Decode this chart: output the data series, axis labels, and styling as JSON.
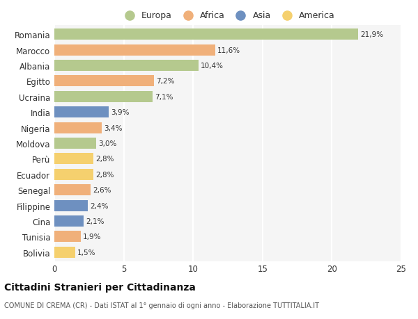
{
  "countries": [
    "Romania",
    "Marocco",
    "Albania",
    "Egitto",
    "Ucraina",
    "India",
    "Nigeria",
    "Moldova",
    "Perù",
    "Ecuador",
    "Senegal",
    "Filippine",
    "Cina",
    "Tunisia",
    "Bolivia"
  ],
  "values": [
    21.9,
    11.6,
    10.4,
    7.2,
    7.1,
    3.9,
    3.4,
    3.0,
    2.8,
    2.8,
    2.6,
    2.4,
    2.1,
    1.9,
    1.5
  ],
  "labels": [
    "21,9%",
    "11,6%",
    "10,4%",
    "7,2%",
    "7,1%",
    "3,9%",
    "3,4%",
    "3,0%",
    "2,8%",
    "2,8%",
    "2,6%",
    "2,4%",
    "2,1%",
    "1,9%",
    "1,5%"
  ],
  "categories": [
    "Europa",
    "Africa",
    "Europa",
    "Africa",
    "Europa",
    "Asia",
    "Africa",
    "Europa",
    "America",
    "America",
    "Africa",
    "Asia",
    "Asia",
    "Africa",
    "America"
  ],
  "colors": {
    "Europa": "#b5c98e",
    "Africa": "#f0b07a",
    "Asia": "#6e90c0",
    "America": "#f5d06e"
  },
  "legend_order": [
    "Europa",
    "Africa",
    "Asia",
    "America"
  ],
  "bg_color": "#f5f5f5",
  "title": "Cittadini Stranieri per Cittadinanza",
  "subtitle": "COMUNE DI CREMA (CR) - Dati ISTAT al 1° gennaio di ogni anno - Elaborazione TUTTITALIA.IT",
  "xlim": [
    0,
    25
  ],
  "xticks": [
    0,
    5,
    10,
    15,
    20,
    25
  ]
}
